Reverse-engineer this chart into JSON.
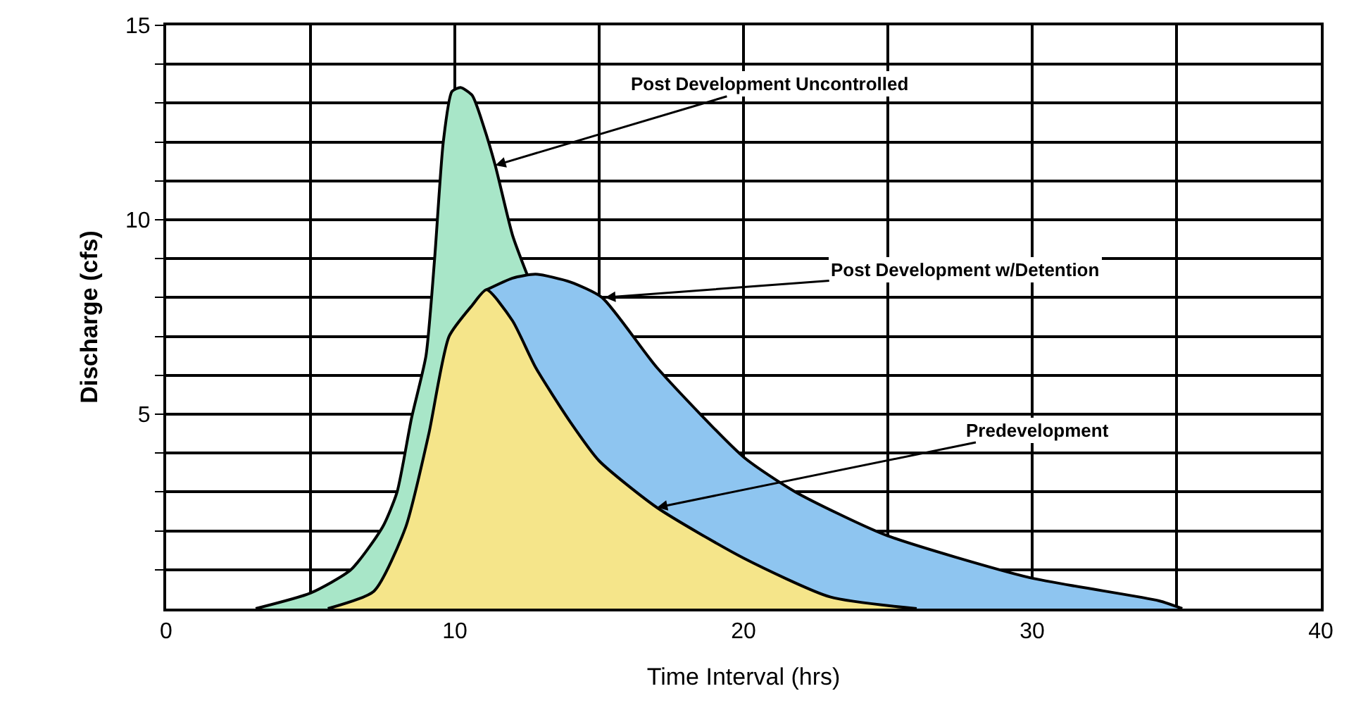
{
  "chart_data": {
    "type": "area",
    "xlabel": "Time Interval (hrs)",
    "ylabel": "Discharge (cfs)",
    "series": [
      {
        "color": "#a8e6c8",
        "x": [
          3.1,
          5,
          6.4,
          7.5,
          8,
          8.5,
          9.0,
          9.3,
          9.6,
          9.9,
          10.2,
          10.6,
          11.0,
          11.4,
          12.0,
          12.5
        ],
        "values": [
          0,
          0.4,
          1.0,
          2.1,
          3.0,
          4.9,
          6.5,
          9.0,
          12.0,
          13.3,
          13.4,
          13.2,
          12.4,
          11.4,
          9.6,
          8.6
        ]
      },
      {
        "color": "#8ec5f0",
        "x": [
          11.1,
          12.0,
          12.8,
          14.0,
          15.1,
          17,
          20,
          21.8,
          24.9,
          29.9,
          34.4,
          35.2
        ],
        "values": [
          8.2,
          8.5,
          8.6,
          8.4,
          8.0,
          6.2,
          3.9,
          3.0,
          1.9,
          0.8,
          0.2,
          0
        ]
      },
      {
        "color": "#f5e58a",
        "x": [
          5.6,
          7.2,
          8.3,
          9.1,
          9.8,
          10.6,
          11.1,
          12.0,
          12.8,
          14,
          15,
          17,
          20,
          23,
          26
        ],
        "values": [
          0,
          0.45,
          2.1,
          4.5,
          7.0,
          7.8,
          8.2,
          7.4,
          6.2,
          4.8,
          3.8,
          2.6,
          1.3,
          0.3,
          0
        ]
      }
    ],
    "annotations": [
      {
        "text": "Post Development Uncontrolled",
        "x": 11.4,
        "y": 11.4
      },
      {
        "text": "Post Development w/Detention",
        "x": 15.2,
        "y": 8.0
      },
      {
        "text": "Predevelopment",
        "x": 17,
        "y": 2.6
      }
    ],
    "xlim": [
      0,
      40
    ],
    "ylim": [
      0,
      15
    ],
    "xticks": [
      0,
      {
        "value": 5,
        "label": null
      },
      10,
      {
        "value": 15,
        "label": null
      },
      20,
      {
        "value": 25,
        "label": null
      },
      30,
      {
        "value": 35,
        "label": null
      },
      40
    ],
    "yticks": [
      {
        "value": 1,
        "label": null
      },
      {
        "value": 2,
        "label": null
      },
      {
        "value": 3,
        "label": null
      },
      {
        "value": 4,
        "label": null
      },
      5,
      {
        "value": 6,
        "label": null
      },
      {
        "value": 7,
        "label": null
      },
      {
        "value": 8,
        "label": null
      },
      {
        "value": 9,
        "label": null
      },
      10,
      {
        "value": 11,
        "label": null
      },
      {
        "value": 12,
        "label": null
      },
      {
        "value": 13,
        "label": null
      },
      {
        "value": 14,
        "label": null
      },
      15
    ],
    "grid": true
  }
}
